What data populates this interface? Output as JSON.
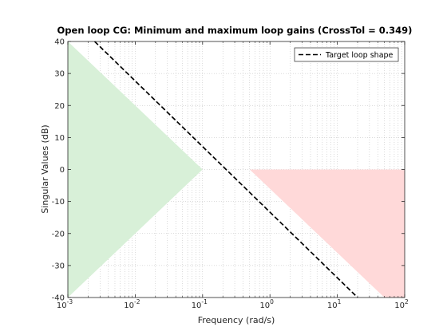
{
  "chart_data": {
    "type": "line",
    "title": "Open loop CG: Minimum and maximum loop gains (CrossTol = 0.349)",
    "xlabel": "Frequency (rad/s)",
    "ylabel": "Singular Values (dB)",
    "xscale": "log",
    "xlim": [
      0.001,
      100
    ],
    "ylim": [
      -40,
      40
    ],
    "x_ticks": [
      {
        "base": "10",
        "exp": "-3"
      },
      {
        "base": "10",
        "exp": "-2"
      },
      {
        "base": "10",
        "exp": "-1"
      },
      {
        "base": "10",
        "exp": "0"
      },
      {
        "base": "10",
        "exp": "1"
      },
      {
        "base": "10",
        "exp": "2"
      }
    ],
    "y_ticks": [
      "40",
      "30",
      "20",
      "10",
      "0",
      "-10",
      "-20",
      "-30",
      "-40"
    ],
    "grid": true,
    "legend_position": "top-right",
    "series": [
      {
        "name": "Target loop shape",
        "style": "dashed",
        "color": "#000000",
        "x": [
          0.0025,
          20
        ],
        "y": [
          40,
          -40
        ]
      }
    ],
    "regions": [
      {
        "role": "minimum loop gain",
        "color": "#d8f0d8",
        "polygon": [
          [
            0.001,
            40
          ],
          [
            0.1,
            0
          ],
          [
            0.001,
            -40
          ]
        ]
      },
      {
        "role": "maximum loop gain",
        "color": "#ffd9d9",
        "polygon": [
          [
            0.5,
            0
          ],
          [
            100,
            0
          ],
          [
            100,
            -40
          ],
          [
            50,
            -40
          ]
        ]
      }
    ]
  }
}
